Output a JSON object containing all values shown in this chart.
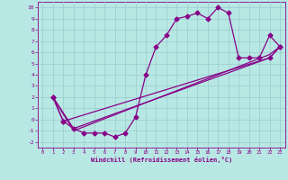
{
  "xlabel": "Windchill (Refroidissement éolien,°C)",
  "xlim": [
    -0.5,
    23.5
  ],
  "ylim": [
    -2.5,
    10.5
  ],
  "xticks": [
    0,
    1,
    2,
    3,
    4,
    5,
    6,
    7,
    8,
    9,
    10,
    11,
    12,
    13,
    14,
    15,
    16,
    17,
    18,
    19,
    20,
    21,
    22,
    23
  ],
  "yticks": [
    -2,
    -1,
    0,
    1,
    2,
    3,
    4,
    5,
    6,
    7,
    8,
    9,
    10
  ],
  "bg_color": "#b8e8e4",
  "line_color": "#880088",
  "grid_color": "#99cccc",
  "line1_x": [
    1,
    2,
    3,
    4,
    5,
    6,
    7,
    8,
    9,
    10,
    11,
    12,
    13,
    14,
    15,
    16,
    17,
    18,
    19,
    20,
    21,
    22,
    23
  ],
  "line1_y": [
    2.0,
    -0.15,
    -0.8,
    -1.2,
    -1.2,
    -1.2,
    -1.55,
    -1.2,
    0.2,
    4.0,
    6.5,
    7.5,
    9.0,
    9.2,
    9.5,
    9.0,
    10.0,
    9.5,
    5.5,
    5.5,
    5.5,
    7.5,
    6.5
  ],
  "line2_x": [
    1,
    2,
    22,
    23
  ],
  "line2_y": [
    2.0,
    -0.15,
    5.5,
    6.5
  ],
  "line3_x": [
    1,
    3,
    22,
    23
  ],
  "line3_y": [
    2.0,
    -0.8,
    5.5,
    6.5
  ],
  "line4_x": [
    1,
    3,
    22,
    23
  ],
  "line4_y": [
    2.0,
    -1.0,
    5.8,
    6.5
  ],
  "markersize": 2.5,
  "linewidth": 0.9
}
